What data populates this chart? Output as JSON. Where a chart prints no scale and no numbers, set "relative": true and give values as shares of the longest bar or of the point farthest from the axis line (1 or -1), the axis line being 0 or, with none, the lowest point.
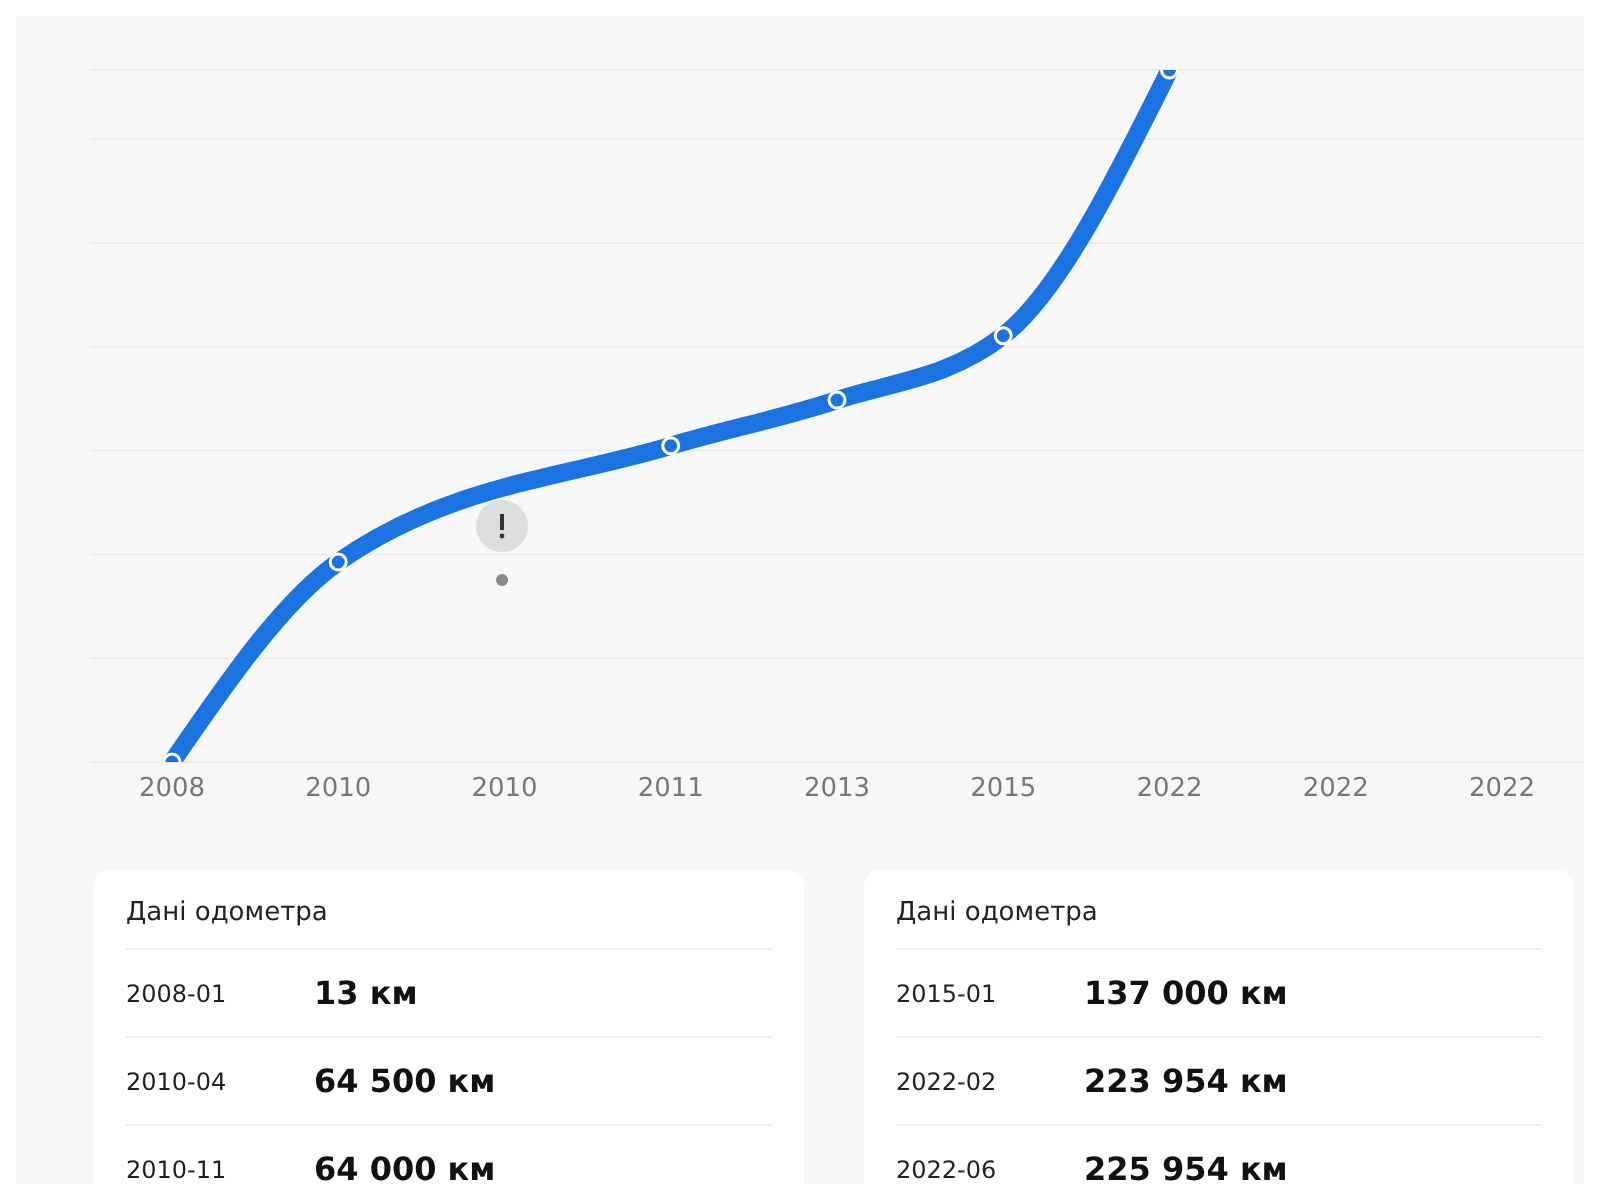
{
  "chart_data": [
    {
      "type": "line",
      "relative": true,
      "categories": [
        "2008",
        "2010",
        "2010",
        "2011",
        "2013",
        "2015",
        "2022",
        "2022",
        "2022"
      ],
      "series": [
        {
          "color": "#1a73e0",
          "values": [
            0,
            0.289,
            null,
            0.457,
            0.523,
            0.616,
            1,
            null,
            null
          ]
        }
      ],
      "grid": "y",
      "marker": "circle",
      "line_style": "solid",
      "tick_labels": "x"
    },
    {
      "type": "other",
      "title": "Дані одометра",
      "annotations": [
        "2008-01",
        "13 км",
        "2010-04",
        "64 500 км",
        "2010-11",
        "64 000 км"
      ]
    },
    {
      "type": "other",
      "title": "Дані одометра",
      "annotations": [
        "2015-01",
        "137 000 км",
        "2022-02",
        "223 954 км",
        "2022-06",
        "225 954 км"
      ]
    }
  ]
}
